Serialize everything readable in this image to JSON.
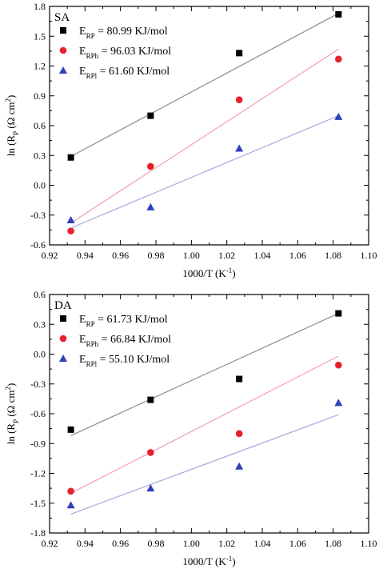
{
  "chart_data": [
    {
      "type": "scatter",
      "panel_label": "SA",
      "xlabel": {
        "main": "1000/T (K",
        "sup": "-1",
        "tail": ")"
      },
      "ylabel": {
        "pre": "ln (R",
        "sub": "P",
        "mid": " (Ω cm",
        "sup": "2",
        "tail": ")"
      },
      "xlim": [
        0.92,
        1.1
      ],
      "ylim": [
        -0.6,
        1.8
      ],
      "xticks": [
        "0.92",
        "0.94",
        "0.96",
        "0.98",
        "1.00",
        "1.02",
        "1.04",
        "1.06",
        "1.08",
        "1.10"
      ],
      "yticks": [
        "-0.6",
        "-0.3",
        "0.0",
        "0.3",
        "0.6",
        "0.9",
        "1.2",
        "1.5",
        "1.8"
      ],
      "legend_position": "top-left",
      "series": [
        {
          "label_main": "E",
          "label_sub": "RP",
          "label_value": " = 80.99 KJ/mol",
          "marker": "square",
          "color": "#000000",
          "fit_color": "#8c8c8c",
          "x": [
            0.932,
            0.977,
            1.027,
            1.083
          ],
          "y": [
            0.28,
            0.7,
            1.33,
            1.72
          ],
          "fit": [
            [
              0.932,
              0.29
            ],
            [
              1.083,
              1.73
            ]
          ]
        },
        {
          "label_main": "E",
          "label_sub": "RPh",
          "label_value": " = 96.03 KJ/mol",
          "marker": "circle",
          "color": "#e8202a",
          "fit_color": "#f2a0b0",
          "x": [
            0.932,
            0.977,
            1.027,
            1.083
          ],
          "y": [
            -0.46,
            0.19,
            0.86,
            1.27
          ],
          "fit": [
            [
              0.932,
              -0.38
            ],
            [
              1.083,
              1.37
            ]
          ]
        },
        {
          "label_main": "E",
          "label_sub": "RPl",
          "label_value": " = 61.60 KJ/mol",
          "marker": "triangle",
          "color": "#2f3fb8",
          "fit_color": "#a8aadc",
          "x": [
            0.932,
            0.977,
            1.027,
            1.083
          ],
          "y": [
            -0.35,
            -0.22,
            0.37,
            0.69
          ],
          "fit": [
            [
              0.932,
              -0.43
            ],
            [
              1.083,
              0.7
            ]
          ]
        }
      ]
    },
    {
      "type": "scatter",
      "panel_label": "DA",
      "xlabel": {
        "main": "1000/T (K",
        "sup": "-1",
        "tail": ")"
      },
      "ylabel": {
        "pre": "ln (R",
        "sub": "P",
        "mid": " (Ω cm",
        "sup": "2",
        "tail": ")"
      },
      "xlim": [
        0.92,
        1.1
      ],
      "ylim": [
        -1.8,
        0.6
      ],
      "xticks": [
        "0.92",
        "0.94",
        "0.96",
        "0.98",
        "1.00",
        "1.02",
        "1.04",
        "1.06",
        "1.08",
        "1.10"
      ],
      "yticks": [
        "-1.8",
        "-1.5",
        "-1.2",
        "-0.9",
        "-0.6",
        "-0.3",
        "0.0",
        "0.3",
        "0.6"
      ],
      "legend_position": "top-left",
      "series": [
        {
          "label_main": "E",
          "label_sub": "RP",
          "label_value": " = 61.73 KJ/mol",
          "marker": "square",
          "color": "#000000",
          "fit_color": "#8c8c8c",
          "x": [
            0.932,
            0.977,
            1.027,
            1.083
          ],
          "y": [
            -0.76,
            -0.46,
            -0.25,
            0.41
          ],
          "fit": [
            [
              0.932,
              -0.82
            ],
            [
              1.083,
              0.41
            ]
          ]
        },
        {
          "label_main": "E",
          "label_sub": "RPh",
          "label_value": " = 66.84 KJ/mol",
          "marker": "circle",
          "color": "#e8202a",
          "fit_color": "#f2a0b0",
          "x": [
            0.932,
            0.977,
            1.027,
            1.083
          ],
          "y": [
            -1.38,
            -0.99,
            -0.8,
            -0.11
          ],
          "fit": [
            [
              0.932,
              -1.4
            ],
            [
              1.083,
              -0.02
            ]
          ]
        },
        {
          "label_main": "E",
          "label_sub": "RPl",
          "label_value": " = 55.10 KJ/mol",
          "marker": "triangle",
          "color": "#2f3fb8",
          "fit_color": "#a8aadc",
          "x": [
            0.932,
            0.977,
            1.027,
            1.083
          ],
          "y": [
            -1.52,
            -1.35,
            -1.13,
            -0.49
          ],
          "fit": [
            [
              0.932,
              -1.61
            ],
            [
              1.083,
              -0.61
            ]
          ]
        }
      ]
    }
  ]
}
